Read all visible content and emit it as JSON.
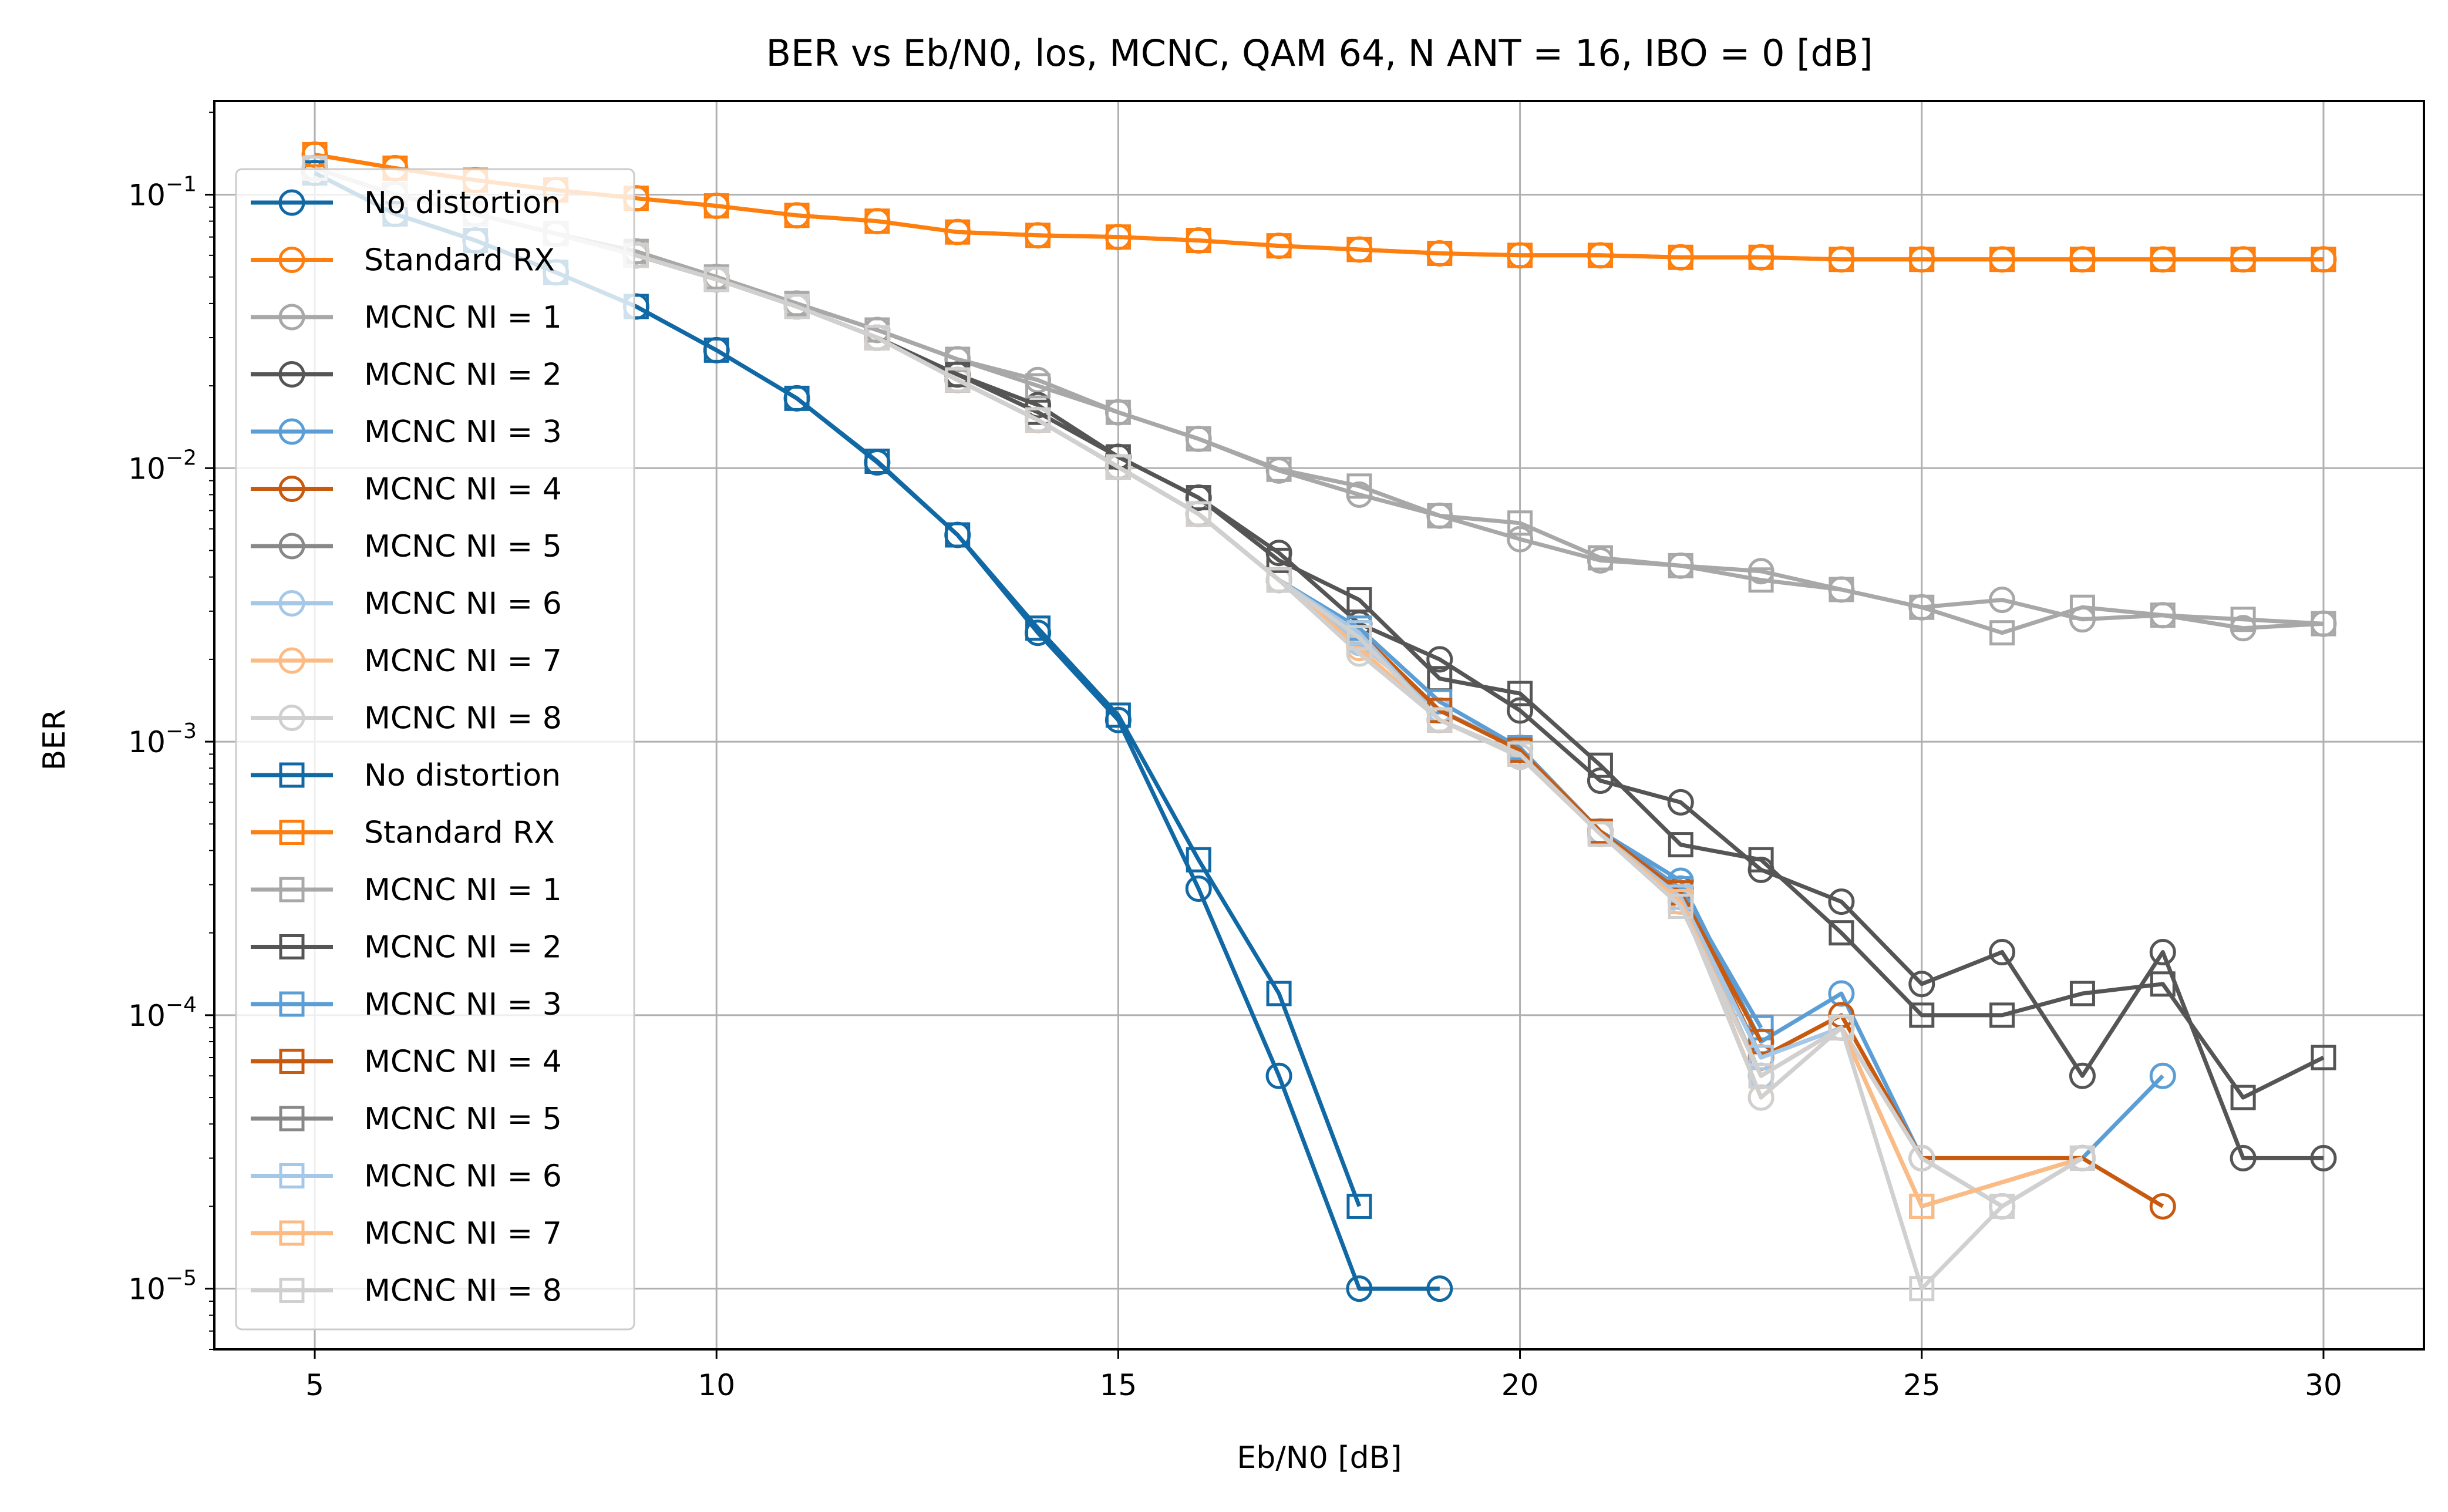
{
  "chart_data": {
    "type": "line",
    "title": "BER vs Eb/N0, los, MCNC, QAM 64, N ANT = 16, IBO = 0 [dB]",
    "xlabel": "Eb/N0 [dB]",
    "ylabel": "BER",
    "xscale": "linear",
    "yscale": "log",
    "xlim": [
      3.75,
      31.25
    ],
    "ylim": [
      6e-06,
      0.22
    ],
    "xticks": [
      5,
      10,
      15,
      20,
      25,
      30
    ],
    "xtick_labels": [
      "5",
      "10",
      "15",
      "20",
      "25",
      "30"
    ],
    "yticks": [
      1e-05,
      0.0001,
      0.001,
      0.01,
      0.1
    ],
    "ytick_labels": [
      {
        "base": "10",
        "exp": "−5"
      },
      {
        "base": "10",
        "exp": "−4"
      },
      {
        "base": "10",
        "exp": "−3"
      },
      {
        "base": "10",
        "exp": "−2"
      },
      {
        "base": "10",
        "exp": "−1"
      }
    ],
    "grid": true,
    "legend_position": "upper-left",
    "x": [
      5,
      6,
      7,
      8,
      9,
      10,
      11,
      12,
      13,
      14,
      15,
      16,
      17,
      18,
      19,
      20,
      21,
      22,
      23,
      24,
      25,
      26,
      27,
      28,
      29,
      30
    ],
    "series": [
      {
        "name": "No distortion",
        "marker": "circle",
        "color": "#1068a4",
        "values": [
          0.12,
          0.085,
          0.068,
          0.052,
          0.039,
          0.027,
          0.018,
          0.0105,
          0.0057,
          0.0025,
          0.0012,
          0.00029,
          6e-05,
          1e-05,
          1e-05,
          null,
          null,
          null,
          null,
          null,
          null,
          null,
          null,
          null,
          null,
          null
        ]
      },
      {
        "name": "Standard RX",
        "marker": "circle",
        "color": "#ff7f0e",
        "values": [
          0.14,
          0.125,
          0.113,
          0.104,
          0.097,
          0.091,
          0.084,
          0.08,
          0.073,
          0.071,
          0.07,
          0.068,
          0.065,
          0.063,
          0.061,
          0.06,
          0.06,
          0.059,
          0.059,
          0.058,
          0.058,
          0.058,
          0.058,
          0.058,
          0.058,
          0.058
        ]
      },
      {
        "name": "MCNC NI = 1",
        "marker": "circle",
        "color": "#a8a8a8",
        "values": [
          0.125,
          0.1,
          0.085,
          0.072,
          0.062,
          0.05,
          0.04,
          0.032,
          0.025,
          0.021,
          0.016,
          0.0128,
          0.0098,
          0.008,
          0.0067,
          0.0055,
          0.0046,
          0.0044,
          0.0042,
          0.0036,
          0.0031,
          0.0033,
          0.0028,
          0.0029,
          0.0026,
          0.0027
        ]
      },
      {
        "name": "MCNC NI = 2",
        "marker": "circle",
        "color": "#555555",
        "values": [
          0.125,
          0.1,
          0.085,
          0.072,
          0.06,
          0.049,
          0.039,
          0.03,
          0.022,
          0.017,
          0.011,
          0.0078,
          0.0049,
          0.0027,
          0.002,
          0.0013,
          0.00072,
          0.0006,
          0.00034,
          0.00026,
          0.00013,
          0.00017,
          6e-05,
          0.00017,
          3e-05,
          3e-05
        ]
      },
      {
        "name": "MCNC NI = 3",
        "marker": "circle",
        "color": "#5b9ed6",
        "values": [
          0.125,
          0.1,
          0.085,
          0.072,
          0.06,
          0.049,
          0.039,
          0.03,
          0.021,
          0.015,
          0.0101,
          0.0068,
          0.0039,
          0.0023,
          0.0013,
          0.00095,
          0.00047,
          0.00031,
          8e-05,
          0.00012,
          3e-05,
          null,
          3e-05,
          6e-05,
          null,
          null
        ]
      },
      {
        "name": "MCNC NI = 4",
        "marker": "circle",
        "color": "#c85a10",
        "values": [
          0.125,
          0.1,
          0.085,
          0.072,
          0.06,
          0.049,
          0.039,
          0.03,
          0.021,
          0.015,
          0.0101,
          0.0068,
          0.0039,
          0.0023,
          0.0013,
          0.00095,
          0.00047,
          0.00029,
          7e-05,
          0.0001,
          3e-05,
          null,
          3e-05,
          2e-05,
          null,
          null
        ]
      },
      {
        "name": "MCNC NI = 5",
        "marker": "circle",
        "color": "#888888",
        "values": [
          0.125,
          0.1,
          0.085,
          0.072,
          0.06,
          0.049,
          0.039,
          0.03,
          0.021,
          0.015,
          0.0101,
          0.0068,
          0.0039,
          0.0023,
          0.0013,
          0.00095,
          0.00047,
          0.00028,
          6e-05,
          9e-05,
          3e-05,
          2e-05,
          3e-05,
          null,
          null,
          null
        ]
      },
      {
        "name": "MCNC NI = 6",
        "marker": "circle",
        "color": "#a6c8e8",
        "values": [
          0.125,
          0.1,
          0.085,
          0.072,
          0.06,
          0.049,
          0.039,
          0.03,
          0.021,
          0.015,
          0.0101,
          0.0068,
          0.0039,
          0.0023,
          0.0013,
          0.00095,
          0.00047,
          0.00028,
          6e-05,
          9e-05,
          3e-05,
          2e-05,
          3e-05,
          null,
          null,
          null
        ]
      },
      {
        "name": "MCNC NI = 7",
        "marker": "circle",
        "color": "#fdbb84",
        "values": [
          0.125,
          0.1,
          0.085,
          0.072,
          0.06,
          0.049,
          0.039,
          0.03,
          0.021,
          0.015,
          0.0101,
          0.0068,
          0.0039,
          0.0022,
          0.0012,
          0.00088,
          0.00046,
          0.00027,
          5e-05,
          9e-05,
          3e-05,
          2e-05,
          3e-05,
          null,
          null,
          null
        ]
      },
      {
        "name": "MCNC NI = 8",
        "marker": "circle",
        "color": "#d0d0d0",
        "values": [
          0.125,
          0.1,
          0.085,
          0.072,
          0.06,
          0.049,
          0.039,
          0.03,
          0.021,
          0.015,
          0.0101,
          0.0068,
          0.0039,
          0.0021,
          0.0012,
          0.00088,
          0.00046,
          0.00026,
          5e-05,
          9e-05,
          3e-05,
          2e-05,
          3e-05,
          null,
          null,
          null
        ]
      },
      {
        "name": "No distortion",
        "marker": "square",
        "color": "#1068a4",
        "values": [
          0.12,
          0.085,
          0.068,
          0.052,
          0.039,
          0.027,
          0.018,
          0.0106,
          0.0057,
          0.0026,
          0.00125,
          0.00037,
          0.00012,
          2e-05,
          null,
          null,
          null,
          null,
          null,
          null,
          null,
          null,
          null,
          null,
          null,
          null
        ]
      },
      {
        "name": "Standard RX",
        "marker": "square",
        "color": "#ff7f0e",
        "values": [
          0.14,
          0.125,
          0.113,
          0.104,
          0.097,
          0.091,
          0.084,
          0.08,
          0.073,
          0.071,
          0.07,
          0.068,
          0.065,
          0.063,
          0.061,
          0.06,
          0.06,
          0.059,
          0.059,
          0.058,
          0.058,
          0.058,
          0.058,
          0.058,
          0.058,
          0.058
        ]
      },
      {
        "name": "MCNC NI = 1",
        "marker": "square",
        "color": "#a8a8a8",
        "values": [
          0.125,
          0.1,
          0.085,
          0.072,
          0.062,
          0.05,
          0.04,
          0.032,
          0.025,
          0.02,
          0.016,
          0.0128,
          0.0099,
          0.0086,
          0.0067,
          0.0063,
          0.0047,
          0.0044,
          0.0039,
          0.0036,
          0.0031,
          0.0025,
          0.0031,
          0.0029,
          0.0028,
          0.0027
        ]
      },
      {
        "name": "MCNC NI = 2",
        "marker": "square",
        "color": "#555555",
        "values": [
          0.125,
          0.1,
          0.085,
          0.072,
          0.06,
          0.049,
          0.039,
          0.03,
          0.022,
          0.016,
          0.011,
          0.0078,
          0.0046,
          0.0033,
          0.0017,
          0.0015,
          0.00082,
          0.00042,
          0.00037,
          0.0002,
          0.0001,
          0.0001,
          0.00012,
          0.00013,
          5e-05,
          7e-05
        ]
      },
      {
        "name": "MCNC NI = 3",
        "marker": "square",
        "color": "#5b9ed6",
        "values": [
          0.125,
          0.1,
          0.085,
          0.072,
          0.06,
          0.049,
          0.039,
          0.03,
          0.021,
          0.015,
          0.0101,
          0.0068,
          0.0039,
          0.0026,
          0.0014,
          0.00095,
          0.00047,
          0.00029,
          9e-05,
          null,
          null,
          null,
          null,
          null,
          null,
          null
        ]
      },
      {
        "name": "MCNC NI = 4",
        "marker": "square",
        "color": "#c85a10",
        "values": [
          0.125,
          0.1,
          0.085,
          0.072,
          0.06,
          0.049,
          0.039,
          0.03,
          0.021,
          0.015,
          0.0101,
          0.0068,
          0.0039,
          0.0025,
          0.0013,
          0.00093,
          0.00047,
          0.00028,
          8e-05,
          null,
          null,
          null,
          null,
          null,
          null,
          null
        ]
      },
      {
        "name": "MCNC NI = 5",
        "marker": "square",
        "color": "#888888",
        "values": [
          0.125,
          0.1,
          0.085,
          0.072,
          0.06,
          0.049,
          0.039,
          0.03,
          0.021,
          0.015,
          0.0101,
          0.0068,
          0.0039,
          0.0025,
          0.0012,
          0.0009,
          0.00046,
          0.00027,
          7e-05,
          9e-05,
          2e-05,
          null,
          3e-05,
          null,
          null,
          null
        ]
      },
      {
        "name": "MCNC NI = 6",
        "marker": "square",
        "color": "#a6c8e8",
        "values": [
          0.125,
          0.1,
          0.085,
          0.072,
          0.06,
          0.049,
          0.039,
          0.03,
          0.021,
          0.015,
          0.0101,
          0.0068,
          0.0039,
          0.0025,
          0.0012,
          0.0009,
          0.00046,
          0.00027,
          7e-05,
          9e-05,
          2e-05,
          null,
          3e-05,
          null,
          null,
          null
        ]
      },
      {
        "name": "MCNC NI = 7",
        "marker": "square",
        "color": "#fdbb84",
        "values": [
          0.125,
          0.1,
          0.085,
          0.072,
          0.06,
          0.049,
          0.039,
          0.03,
          0.021,
          0.015,
          0.0101,
          0.0068,
          0.0039,
          0.0024,
          0.0012,
          0.0009,
          0.00046,
          0.00026,
          6e-05,
          9e-05,
          2e-05,
          null,
          3e-05,
          null,
          null,
          null
        ]
      },
      {
        "name": "MCNC NI = 8",
        "marker": "square",
        "color": "#d0d0d0",
        "values": [
          0.125,
          0.1,
          0.085,
          0.072,
          0.06,
          0.049,
          0.039,
          0.03,
          0.021,
          0.015,
          0.0101,
          0.0068,
          0.0039,
          0.0024,
          0.0012,
          0.0009,
          0.00046,
          0.00025,
          6e-05,
          9e-05,
          1e-05,
          2e-05,
          3e-05,
          null,
          null,
          null
        ]
      }
    ]
  }
}
